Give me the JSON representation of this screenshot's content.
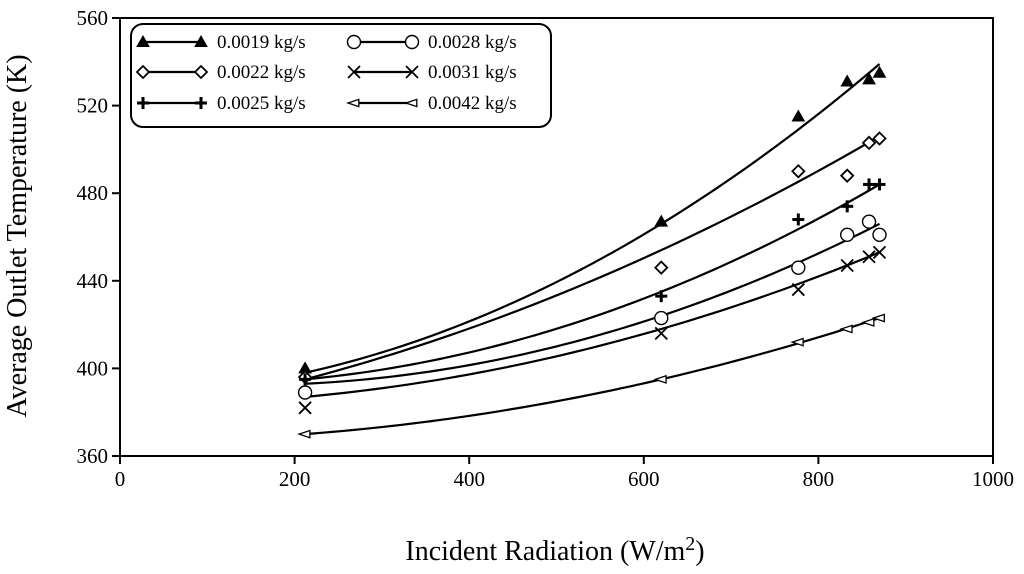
{
  "chart_data": {
    "type": "scatter",
    "title": "",
    "xlabel": "Incident Radiation (W/m",
    "xlabel_sup": "2",
    "xlabel_close": ")",
    "ylabel": "Average Outlet Temperature (K)",
    "xlim": [
      0,
      1000
    ],
    "ylim": [
      360,
      560
    ],
    "xticks": [
      0,
      200,
      400,
      600,
      800,
      1000
    ],
    "yticks": [
      360,
      400,
      440,
      480,
      520,
      560
    ],
    "grid": false,
    "legend_position": "top-left",
    "series": [
      {
        "name": "0.0019 kg/s",
        "marker": "triangle-filled",
        "points": [
          [
            212,
            400
          ],
          [
            620,
            467
          ],
          [
            777,
            515
          ],
          [
            833,
            531
          ],
          [
            858,
            532
          ],
          [
            870,
            535
          ]
        ],
        "fit": [
          [
            212,
            398
          ],
          [
            620,
            466
          ],
          [
            870,
            539
          ]
        ]
      },
      {
        "name": "0.0022 kg/s",
        "marker": "diamond-open",
        "points": [
          [
            212,
            396
          ],
          [
            620,
            446
          ],
          [
            777,
            490
          ],
          [
            833,
            488
          ],
          [
            858,
            503
          ],
          [
            870,
            505
          ]
        ],
        "fit": [
          [
            212,
            395
          ],
          [
            620,
            454
          ],
          [
            870,
            506
          ]
        ]
      },
      {
        "name": "0.0025 kg/s",
        "marker": "plus",
        "points": [
          [
            212,
            395
          ],
          [
            620,
            433
          ],
          [
            777,
            468
          ],
          [
            833,
            474
          ],
          [
            858,
            484
          ],
          [
            870,
            484
          ]
        ],
        "fit": [
          [
            212,
            395
          ],
          [
            620,
            435
          ],
          [
            870,
            484
          ]
        ]
      },
      {
        "name": "0.0028 kg/s",
        "marker": "circle-open",
        "points": [
          [
            212,
            389
          ],
          [
            620,
            423
          ],
          [
            777,
            446
          ],
          [
            833,
            461
          ],
          [
            858,
            467
          ],
          [
            870,
            461
          ]
        ],
        "fit": [
          [
            212,
            393
          ],
          [
            620,
            424
          ],
          [
            870,
            466
          ]
        ]
      },
      {
        "name": "0.0031 kg/s",
        "marker": "x",
        "points": [
          [
            212,
            382
          ],
          [
            620,
            416
          ],
          [
            777,
            436
          ],
          [
            833,
            447
          ],
          [
            858,
            451
          ],
          [
            870,
            453
          ]
        ],
        "fit": [
          [
            212,
            387
          ],
          [
            620,
            418
          ],
          [
            870,
            453
          ]
        ]
      },
      {
        "name": "0.0042 kg/s",
        "marker": "triangle-left-open",
        "points": [
          [
            212,
            370
          ],
          [
            620,
            395
          ],
          [
            777,
            412
          ],
          [
            833,
            418
          ],
          [
            858,
            421
          ],
          [
            870,
            423
          ]
        ],
        "fit": [
          [
            212,
            370
          ],
          [
            620,
            395
          ],
          [
            870,
            423
          ]
        ]
      }
    ],
    "legend_order": [
      0,
      3,
      1,
      4,
      2,
      5
    ]
  }
}
